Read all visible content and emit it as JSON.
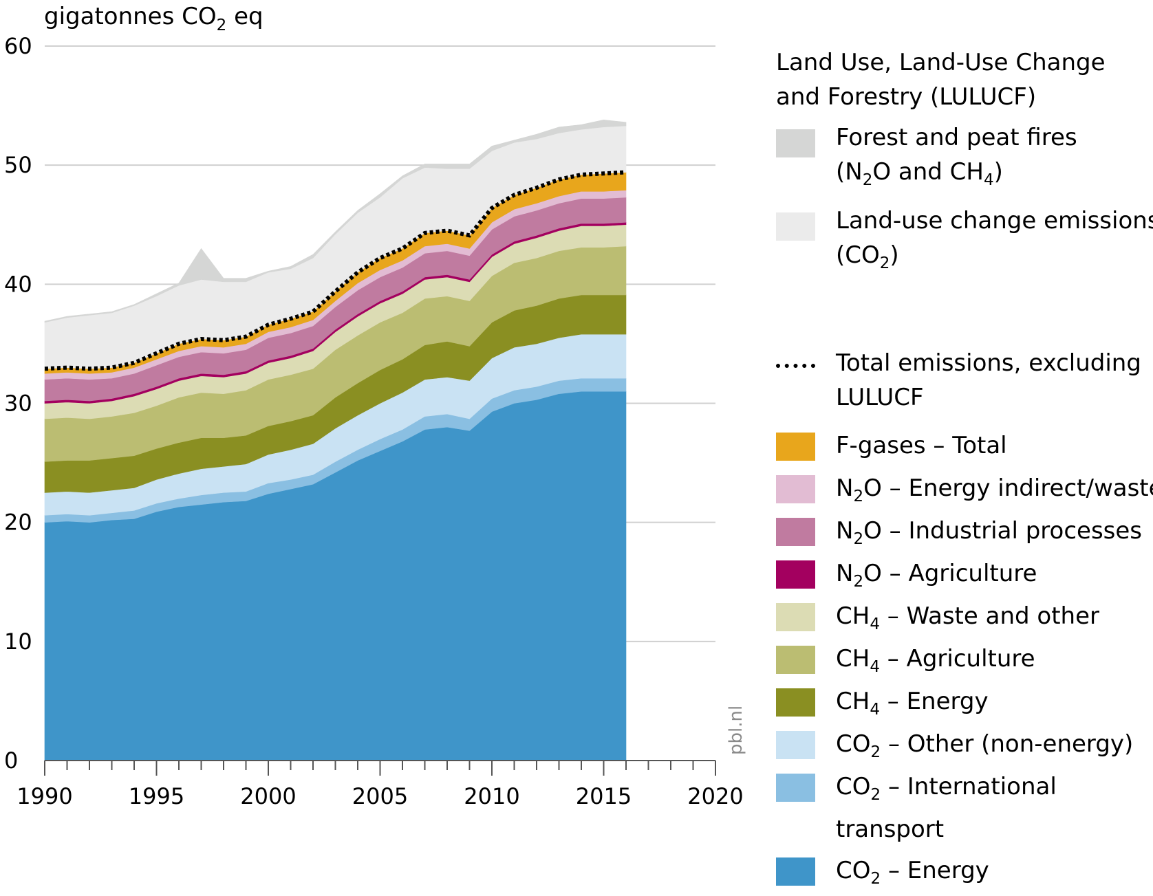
{
  "chart_data": {
    "type": "area",
    "stacked": true,
    "title": "",
    "ylabel_prefix": "gigatonnes CO",
    "ylabel_sub": "2",
    "ylabel_suffix": " eq",
    "xlabel": "",
    "xlim": [
      1990,
      2020
    ],
    "ylim": [
      0,
      60
    ],
    "xticks": [
      1990,
      1995,
      2000,
      2005,
      2010,
      2015,
      2020
    ],
    "yticks": [
      0,
      10,
      20,
      30,
      40,
      50,
      60
    ],
    "grid": "horizontal",
    "watermark": "pbl.nl",
    "x": [
      1990,
      1991,
      1992,
      1993,
      1994,
      1995,
      1996,
      1997,
      1998,
      1999,
      2000,
      2001,
      2002,
      2003,
      2004,
      2005,
      2006,
      2007,
      2008,
      2009,
      2010,
      2011,
      2012,
      2013,
      2014,
      2015,
      2016
    ],
    "series": [
      {
        "key": "co2_energy",
        "name": "CO2 – Energy",
        "color": "#3f95c9",
        "values": [
          20.0,
          20.1,
          20.0,
          20.2,
          20.3,
          20.9,
          21.3,
          21.5,
          21.7,
          21.8,
          22.4,
          22.8,
          23.2,
          24.2,
          25.2,
          26.0,
          26.8,
          27.8,
          28.0,
          27.7,
          29.3,
          30.0,
          30.3,
          30.8,
          31.0,
          31.0,
          31.0
        ]
      },
      {
        "key": "co2_intl",
        "name": "CO2 – International transport",
        "color": "#8abfe2",
        "values": [
          0.6,
          0.6,
          0.6,
          0.6,
          0.7,
          0.7,
          0.7,
          0.8,
          0.8,
          0.8,
          0.9,
          0.8,
          0.8,
          0.9,
          0.9,
          1.0,
          1.0,
          1.1,
          1.1,
          1.0,
          1.1,
          1.1,
          1.1,
          1.1,
          1.1,
          1.1,
          1.1
        ]
      },
      {
        "key": "co2_other",
        "name": "CO2 – Other (non-energy)",
        "color": "#c9e2f3",
        "values": [
          1.9,
          1.9,
          1.9,
          1.9,
          1.9,
          2.0,
          2.1,
          2.2,
          2.2,
          2.3,
          2.4,
          2.5,
          2.6,
          2.8,
          2.9,
          3.0,
          3.1,
          3.1,
          3.1,
          3.2,
          3.4,
          3.6,
          3.6,
          3.6,
          3.7,
          3.7,
          3.7
        ]
      },
      {
        "key": "ch4_energy",
        "name": "CH4 – Energy",
        "color": "#8a8f22",
        "values": [
          2.6,
          2.6,
          2.7,
          2.7,
          2.7,
          2.6,
          2.6,
          2.6,
          2.4,
          2.4,
          2.4,
          2.4,
          2.4,
          2.6,
          2.7,
          2.8,
          2.8,
          2.9,
          3.0,
          2.9,
          3.0,
          3.1,
          3.2,
          3.3,
          3.3,
          3.3,
          3.3
        ]
      },
      {
        "key": "ch4_agri",
        "name": "CH4 – Agriculture",
        "color": "#bbbd72",
        "values": [
          3.6,
          3.6,
          3.5,
          3.5,
          3.6,
          3.6,
          3.8,
          3.8,
          3.7,
          3.8,
          3.9,
          3.9,
          3.9,
          4.0,
          4.0,
          4.0,
          3.9,
          3.9,
          3.8,
          3.8,
          3.9,
          4.0,
          4.0,
          4.0,
          4.0,
          4.0,
          4.1
        ]
      },
      {
        "key": "ch4_waste",
        "name": "CH4 – Waste and other",
        "color": "#dcdcb4",
        "values": [
          1.3,
          1.3,
          1.3,
          1.3,
          1.4,
          1.4,
          1.4,
          1.4,
          1.4,
          1.4,
          1.4,
          1.4,
          1.5,
          1.5,
          1.6,
          1.6,
          1.6,
          1.6,
          1.6,
          1.6,
          1.6,
          1.6,
          1.7,
          1.7,
          1.8,
          1.8,
          1.8
        ]
      },
      {
        "key": "n2o_agri",
        "name": "N2O – Agriculture",
        "color": "#a3005f",
        "values": [
          0.2,
          0.2,
          0.2,
          0.2,
          0.2,
          0.2,
          0.2,
          0.2,
          0.2,
          0.2,
          0.2,
          0.2,
          0.2,
          0.2,
          0.2,
          0.2,
          0.2,
          0.2,
          0.2,
          0.2,
          0.2,
          0.2,
          0.2,
          0.2,
          0.2,
          0.2,
          0.2
        ]
      },
      {
        "key": "n2o_ind",
        "name": "N2O – Industrial processes",
        "color": "#c07ba0",
        "values": [
          1.8,
          1.8,
          1.8,
          1.7,
          1.7,
          1.8,
          1.8,
          1.8,
          1.8,
          1.8,
          1.9,
          1.9,
          1.9,
          1.9,
          2.0,
          2.0,
          2.0,
          2.0,
          2.0,
          2.0,
          2.1,
          2.1,
          2.1,
          2.1,
          2.1,
          2.1,
          2.1
        ]
      },
      {
        "key": "n2o_waste",
        "name": "N2O – Energy indirect/waste",
        "color": "#e2bcd3",
        "values": [
          0.5,
          0.5,
          0.5,
          0.5,
          0.5,
          0.5,
          0.5,
          0.5,
          0.5,
          0.5,
          0.5,
          0.5,
          0.5,
          0.5,
          0.6,
          0.6,
          0.6,
          0.6,
          0.6,
          0.6,
          0.6,
          0.6,
          0.6,
          0.6,
          0.6,
          0.6,
          0.6
        ]
      },
      {
        "key": "fgas",
        "name": "F-gases – Total",
        "color": "#e8a61c",
        "values": [
          0.4,
          0.4,
          0.4,
          0.4,
          0.4,
          0.5,
          0.6,
          0.6,
          0.6,
          0.6,
          0.6,
          0.7,
          0.7,
          0.8,
          0.9,
          1.0,
          1.0,
          1.1,
          1.1,
          1.1,
          1.2,
          1.2,
          1.3,
          1.4,
          1.4,
          1.5,
          1.5
        ]
      },
      {
        "key": "luc",
        "name": "Land-use change emissions (CO2)",
        "color": "#ebebeb",
        "values": [
          3.9,
          4.2,
          4.5,
          4.6,
          4.8,
          4.8,
          4.9,
          5.0,
          4.9,
          4.6,
          4.4,
          4.2,
          4.5,
          4.8,
          5.0,
          5.1,
          5.9,
          5.5,
          5.2,
          5.6,
          4.8,
          4.4,
          4.1,
          3.9,
          3.8,
          3.9,
          3.9
        ]
      },
      {
        "key": "fires",
        "name": "Forest and peat fires (N2O and CH4)",
        "color": "#d5d6d5",
        "values": [
          0.1,
          0.1,
          0.1,
          0.1,
          0.1,
          0.2,
          0.2,
          2.6,
          0.3,
          0.3,
          0.1,
          0.2,
          0.3,
          0.2,
          0.2,
          0.3,
          0.2,
          0.3,
          0.4,
          0.4,
          0.4,
          0.2,
          0.4,
          0.5,
          0.4,
          0.6,
          0.3
        ]
      }
    ],
    "total_excl_lulucf_label": "Total emissions, excluding LULUCF"
  },
  "legend": {
    "lulucf_title_1": "Land Use, Land-Use Change",
    "lulucf_title_2": "and Forestry (LULUCF)",
    "fires_1": "Forest and peat fires",
    "fires_n": "(N",
    "fires_2": "O and CH",
    "fires_4": ")",
    "luc_1": "Land-use change emissions",
    "luc_2a": "(CO",
    "luc_2b": ")",
    "total_1": "Total emissions, excluding",
    "total_2": "LULUCF",
    "fgas": "F-gases – Total",
    "n2o_waste": "O – Energy indirect/waste",
    "n2o_ind": "O – Industrial processes",
    "n2o_agri": "O – Agriculture",
    "ch4_waste": " – Waste and other",
    "ch4_agri": " – Agriculture",
    "ch4_energy": " – Energy",
    "co2_other": " – Other (non-energy)",
    "co2_intl_1": " – International",
    "co2_intl_2": "transport",
    "co2_energy": " – Energy",
    "n2o_prefix": "N",
    "ch4_prefix": "CH",
    "co2_prefix": "CO",
    "sub2": "2",
    "sub4": "4"
  }
}
